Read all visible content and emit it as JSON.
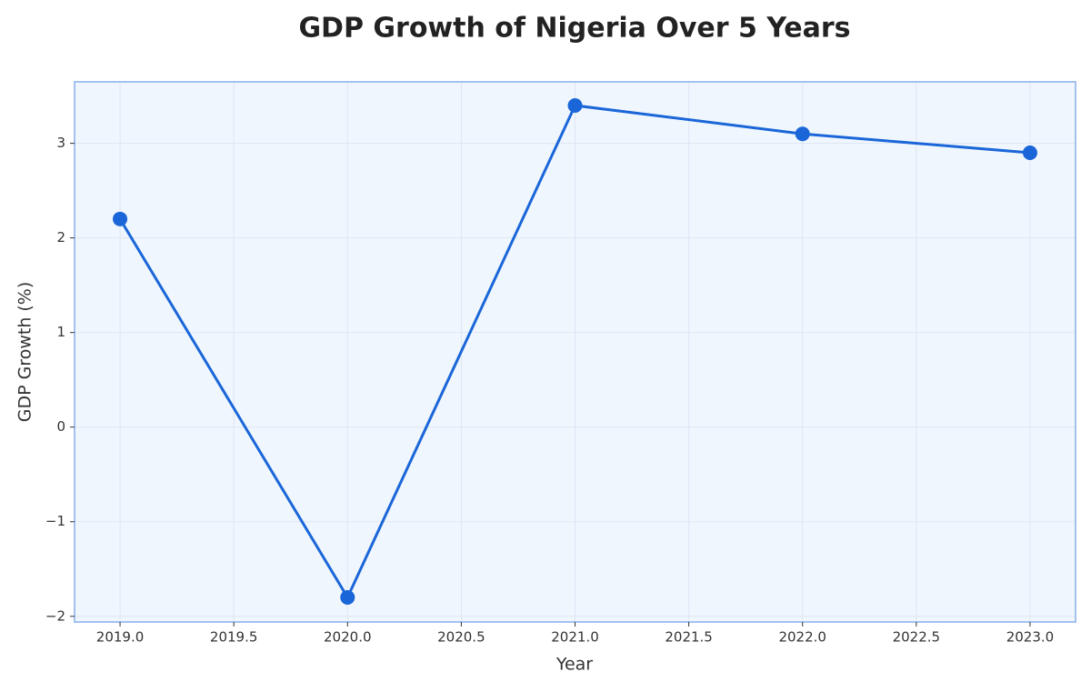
{
  "chart_data": {
    "type": "line",
    "title": "GDP Growth of Nigeria Over 5 Years",
    "x_label": "Year",
    "y_label": "GDP Growth (%)",
    "x": [
      2019,
      2020,
      2021,
      2022,
      2023
    ],
    "series": [
      {
        "name": "GDP Growth",
        "color": "#1a66d9",
        "values": [
          2.2,
          -1.8,
          3.4,
          3.1,
          2.9
        ]
      }
    ],
    "xlim": [
      2018.8,
      2023.2
    ],
    "xticks": [
      {
        "value": 2019,
        "label": "2019.0"
      },
      {
        "value": 2019.5,
        "label": "2019.5"
      },
      {
        "value": 2020,
        "label": "2020.0"
      },
      {
        "value": 2020.5,
        "label": "2020.5"
      },
      {
        "value": 2021,
        "label": "2021.0"
      },
      {
        "value": 2021.5,
        "label": "2021.5"
      },
      {
        "value": 2022,
        "label": "2022.0"
      },
      {
        "value": 2022.5,
        "label": "2022.5"
      },
      {
        "value": 2023,
        "label": "2023.0"
      }
    ],
    "ylim": [
      -2.06,
      3.65
    ],
    "yticks": [
      {
        "value": -2,
        "label": "−2"
      },
      {
        "value": -1,
        "label": "−1"
      },
      0,
      1,
      2,
      3
    ],
    "grid": true
  }
}
